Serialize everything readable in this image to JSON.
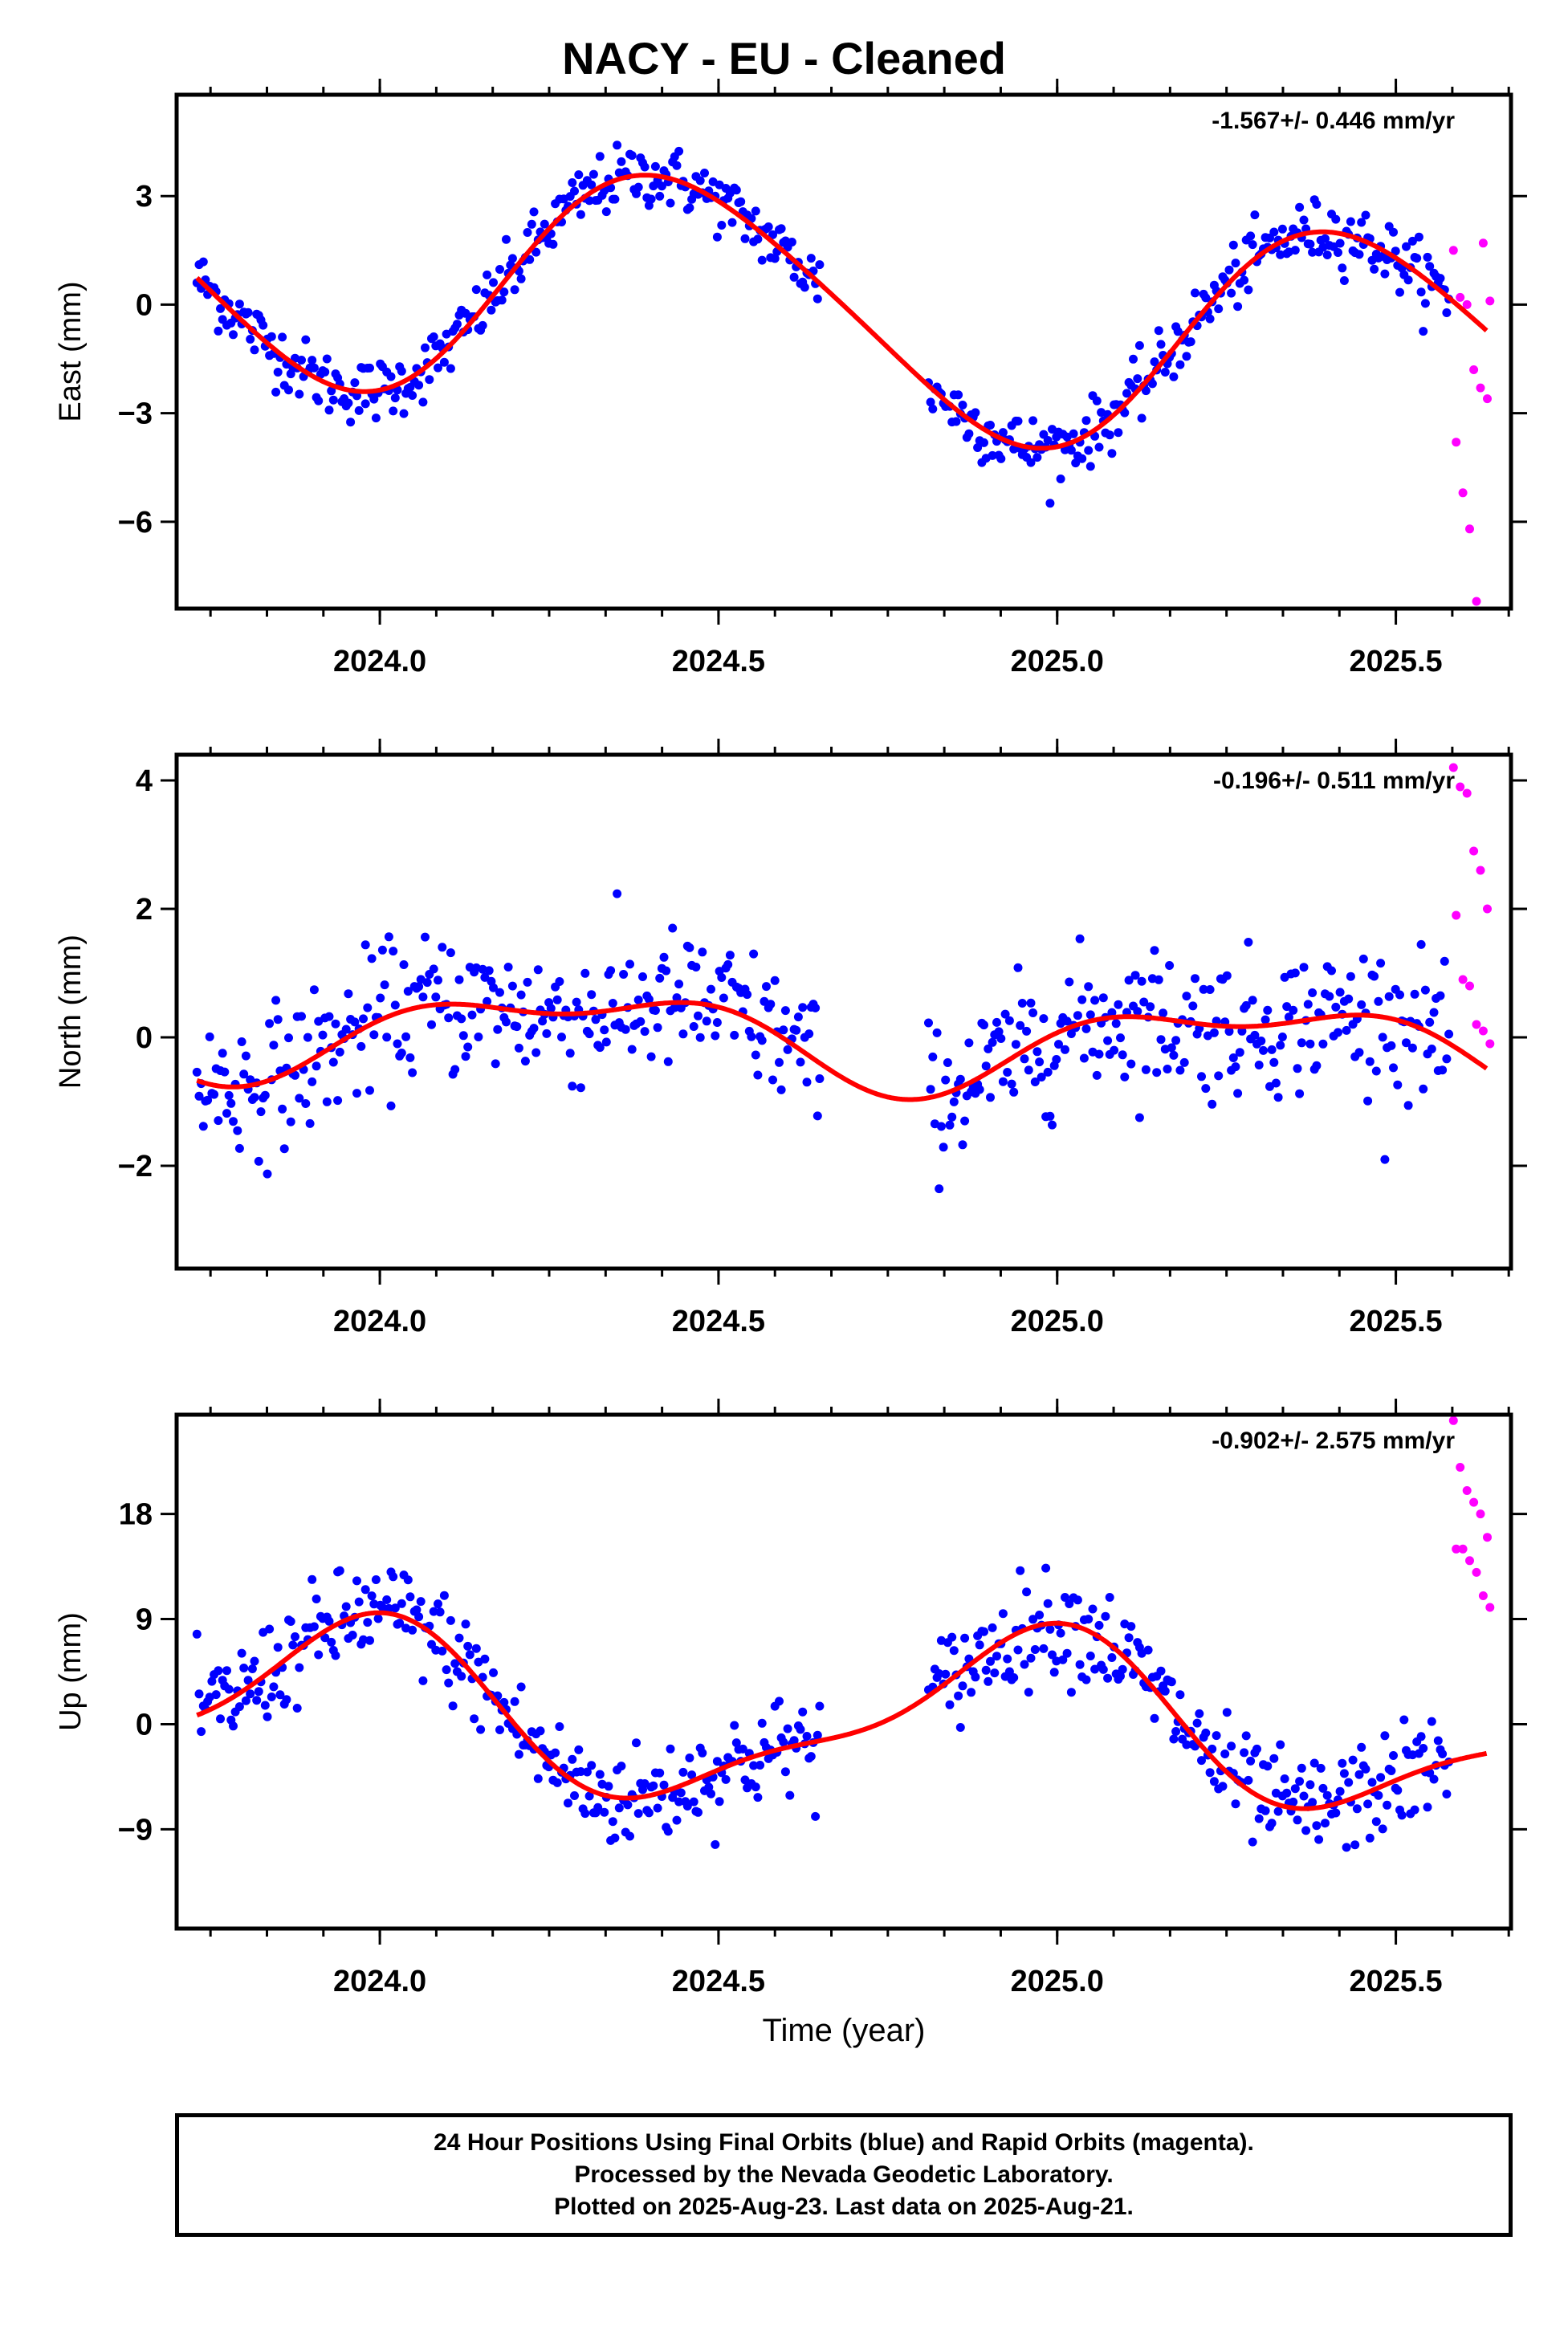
{
  "title": "NACY  - EU - Cleaned",
  "footer": {
    "line1": "24 Hour Positions Using Final Orbits (blue) and Rapid Orbits (magenta).",
    "line2": "Processed by the Nevada Geodetic Laboratory.",
    "line3": "Plotted on 2025-Aug-23. Last data on 2025-Aug-21."
  },
  "colors": {
    "final": "#0000ff",
    "rapid": "#ff00ff",
    "fit": "#ff0000",
    "axis": "#000000"
  },
  "chart_data": [
    {
      "type": "scatter",
      "title": "",
      "ylabel": "East (mm)",
      "xlabel": "",
      "rate_label": "-1.567+/- 0.446 mm/yr",
      "xlim": [
        2023.7,
        2025.67
      ],
      "ylim": [
        -8.4,
        5.8
      ],
      "xticks": [
        2024.0,
        2024.5,
        2025.0,
        2025.5
      ],
      "xtick_labels": [
        "2024.0",
        "2024.5",
        "2025.0",
        "2025.5"
      ],
      "yticks": [
        -6,
        -3,
        0,
        3
      ],
      "ytick_labels": [
        "−6",
        "−3",
        "0",
        "3"
      ],
      "model": {
        "a": 0.0,
        "b": -1.567,
        "c1": -3.0,
        "s1": 1.25,
        "c2": -0.3,
        "s2": -0.2,
        "jumps": []
      },
      "segments": [
        [
          2023.73,
          2024.65
        ],
        [
          2024.81,
          2025.58
        ]
      ],
      "rapid": {
        "range": [
          2025.585,
          2025.635
        ],
        "values": [
          1.5,
          0.2,
          0.0,
          -1.8,
          -2.3,
          -2.6,
          -3.8,
          -5.2,
          -6.2,
          -8.2,
          1.7,
          0.1
        ]
      },
      "noise": 0.8,
      "gap": [
        2024.65,
        2024.81
      ]
    },
    {
      "type": "scatter",
      "title": "",
      "ylabel": "North (mm)",
      "xlabel": "",
      "rate_label": "-0.196+/- 0.511 mm/yr",
      "xlim": [
        2023.7,
        2025.67
      ],
      "ylim": [
        -3.6,
        4.4
      ],
      "xticks": [
        2024.0,
        2024.5,
        2025.0,
        2025.5
      ],
      "xtick_labels": [
        "2024.0",
        "2024.5",
        "2025.0",
        "2025.5"
      ],
      "yticks": [
        -2,
        0,
        2,
        4
      ],
      "ytick_labels": [
        "−2",
        "0",
        "2",
        "4"
      ],
      "model": {
        "a": 0.0,
        "b": -0.196,
        "c1": -0.15,
        "s1": 0.6,
        "c2": 0.3,
        "s2": 0.1,
        "jumps": []
      },
      "segments": [
        [
          2023.73,
          2024.65
        ],
        [
          2024.81,
          2025.58
        ]
      ],
      "rapid": {
        "range": [
          2025.585,
          2025.635
        ],
        "values": [
          4.2,
          3.9,
          3.8,
          2.9,
          2.6,
          2.0,
          1.9,
          0.9,
          0.8,
          0.2,
          0.1,
          -0.1
        ]
      },
      "noise": 1.0,
      "gap": [
        2024.65,
        2024.81
      ]
    },
    {
      "type": "scatter",
      "title": "",
      "ylabel": "Up (mm)",
      "xlabel": "Time (year)",
      "rate_label": "-0.902+/- 2.575 mm/yr",
      "xlim": [
        2023.7,
        2025.67
      ],
      "ylim": [
        -17.5,
        26.5
      ],
      "xticks": [
        2024.0,
        2024.5,
        2025.0,
        2025.5
      ],
      "xtick_labels": [
        "2024.0",
        "2024.5",
        "2025.0",
        "2025.5"
      ],
      "yticks": [
        -9,
        0,
        9,
        18
      ],
      "ytick_labels": [
        "−9",
        "0",
        "9",
        "18"
      ],
      "model": {
        "a": 0.5,
        "b": -0.902,
        "c1": 6.5,
        "s1": -2.0,
        "c2": 2.0,
        "s2": 1.0,
        "jumps": []
      },
      "segments": [
        [
          2023.73,
          2024.65
        ],
        [
          2024.81,
          2025.58
        ]
      ],
      "rapid": {
        "range": [
          2025.585,
          2025.635
        ],
        "values": [
          26,
          22,
          20,
          19,
          18,
          16,
          15,
          15,
          14,
          13,
          11,
          10
        ]
      },
      "noise": 4.0,
      "gap": [
        2024.65,
        2024.81
      ]
    }
  ]
}
